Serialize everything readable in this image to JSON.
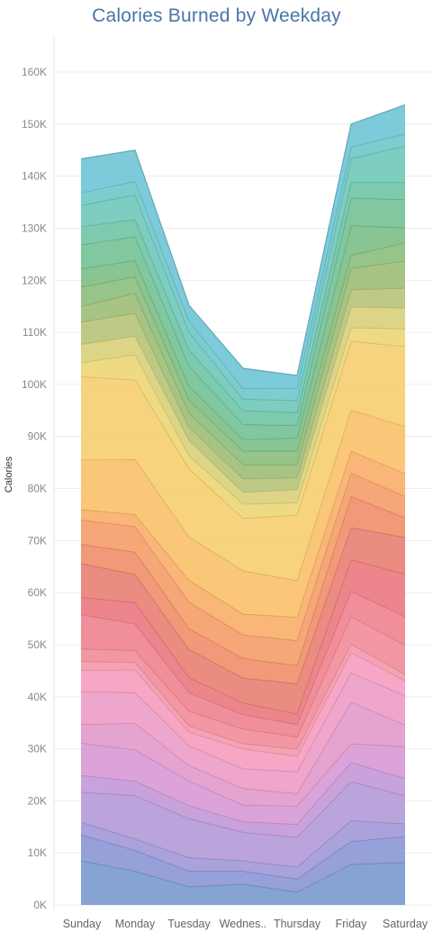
{
  "chart_data": {
    "type": "area",
    "stacked": true,
    "title": "Calories Burned by Weekday",
    "ylabel": "Calories",
    "xlabel": "",
    "categories": [
      "Sunday",
      "Monday",
      "Tuesday",
      "Wednes..",
      "Thursday",
      "Friday",
      "Saturday"
    ],
    "ylim": [
      0,
      160000
    ],
    "yticks": [
      "0K",
      "10K",
      "20K",
      "30K",
      "40K",
      "50K",
      "60K",
      "70K",
      "80K",
      "90K",
      "100K",
      "110K",
      "120K",
      "130K",
      "140K",
      "150K",
      "160K"
    ],
    "grid": true,
    "legend": "none",
    "series": [
      {
        "color": "#7b9cd0",
        "values": [
          8500,
          6500,
          3500,
          4000,
          2500,
          7800,
          8200
        ]
      },
      {
        "color": "#8d98d6",
        "values": [
          5000,
          4000,
          3000,
          2500,
          2500,
          4400,
          5000
        ]
      },
      {
        "color": "#a39ad8",
        "values": [
          2400,
          2200,
          2600,
          2000,
          2300,
          4000,
          2400
        ]
      },
      {
        "color": "#b59bd8",
        "values": [
          5800,
          8300,
          7500,
          5500,
          5700,
          7500,
          5400
        ]
      },
      {
        "color": "#c69ad8",
        "values": [
          3200,
          2800,
          2500,
          2000,
          2500,
          3700,
          3300
        ]
      },
      {
        "color": "#d89bd6",
        "values": [
          6200,
          6000,
          4700,
          3200,
          3500,
          3600,
          6100
        ]
      },
      {
        "color": "#e39bcc",
        "values": [
          3600,
          5100,
          3000,
          3200,
          2400,
          8000,
          4200
        ]
      },
      {
        "color": "#ee9ec8",
        "values": [
          6300,
          5900,
          3800,
          3800,
          4200,
          5600,
          5600
        ]
      },
      {
        "color": "#f6a0c0",
        "values": [
          4100,
          4400,
          2600,
          3800,
          3000,
          3900,
          2900
        ]
      },
      {
        "color": "#f59aac",
        "values": [
          1700,
          1400,
          1200,
          1000,
          1400,
          1600,
          1200
        ]
      },
      {
        "color": "#f28e9c",
        "values": [
          2400,
          2300,
          2800,
          2800,
          2300,
          5300,
          5600
        ]
      },
      {
        "color": "#ef8590",
        "values": [
          6600,
          5100,
          3600,
          2800,
          2400,
          4900,
          5500
        ]
      },
      {
        "color": "#ec7c82",
        "values": [
          3300,
          4100,
          2900,
          2200,
          2000,
          6000,
          8200
        ]
      },
      {
        "color": "#e98276",
        "values": [
          6500,
          5400,
          5400,
          4800,
          5800,
          6200,
          7000
        ]
      },
      {
        "color": "#f0906e",
        "values": [
          3700,
          4300,
          4000,
          3800,
          3500,
          6000,
          3800
        ]
      },
      {
        "color": "#f5a06c",
        "values": [
          4700,
          4900,
          5100,
          4500,
          4800,
          4500,
          4100
        ]
      },
      {
        "color": "#f8b06c",
        "values": [
          2000,
          2300,
          4200,
          4000,
          4500,
          4200,
          4400
        ]
      },
      {
        "color": "#fac26e",
        "values": [
          9500,
          10600,
          8300,
          8300,
          7000,
          7900,
          9000
        ]
      },
      {
        "color": "#f6cf72",
        "values": [
          16000,
          15300,
          13100,
          10100,
          12600,
          13200,
          15400
        ]
      },
      {
        "color": "#eed77a",
        "values": [
          2700,
          4800,
          2500,
          2700,
          2400,
          2600,
          3400
        ]
      },
      {
        "color": "#d9d07c",
        "values": [
          3500,
          3600,
          3000,
          2300,
          2500,
          4000,
          4000
        ]
      },
      {
        "color": "#b8c47c",
        "values": [
          4300,
          4400,
          2500,
          2600,
          2300,
          3300,
          3800
        ]
      },
      {
        "color": "#a1bf7a",
        "values": [
          3000,
          3800,
          2700,
          2700,
          2500,
          4100,
          5200
        ]
      },
      {
        "color": "#8ebf7e",
        "values": [
          3700,
          3200,
          2500,
          2600,
          2600,
          2500,
          3500
        ]
      },
      {
        "color": "#7fc08a",
        "values": [
          3500,
          3100,
          2600,
          2200,
          2500,
          5700,
          2900
        ]
      },
      {
        "color": "#76c297",
        "values": [
          4600,
          4600,
          3900,
          2900,
          2400,
          5300,
          5400
        ]
      },
      {
        "color": "#72c6a8",
        "values": [
          3500,
          3300,
          3100,
          2700,
          2500,
          3000,
          3300
        ]
      },
      {
        "color": "#72c9bc",
        "values": [
          4100,
          4700,
          3400,
          2200,
          2300,
          4600,
          7000
        ]
      },
      {
        "color": "#72c9cc",
        "values": [
          2400,
          2600,
          2200,
          2000,
          2400,
          2200,
          2300
        ]
      },
      {
        "color": "#72c6d8",
        "values": [
          6500,
          6000,
          3000,
          3900,
          2400,
          4400,
          5600
        ]
      }
    ]
  }
}
